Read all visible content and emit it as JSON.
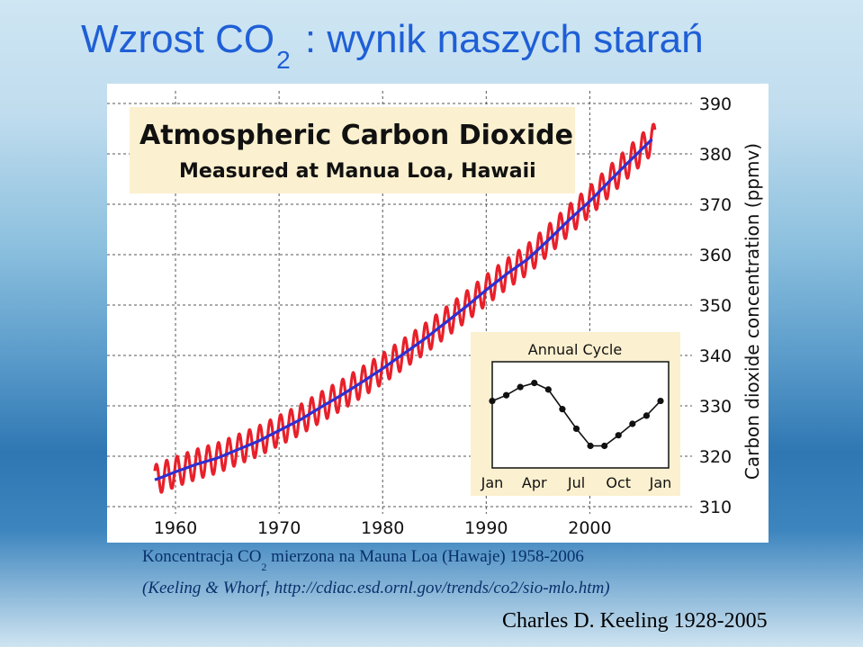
{
  "slide": {
    "title_main": "Wzrost CO",
    "title_sub": "2",
    "title_rest": " : wynik naszych starań",
    "caption_line1_a": "Koncentracja CO",
    "caption_line1_sub": "2",
    "caption_line1_b": " mierzona na Mauna Loa (Hawaje) 1958-2006",
    "caption_line2": "(Keeling & Whorf, http://cdiac.esd.ornl.gov/trends/co2/sio-mlo.htm)",
    "credit": "Charles D. Keeling 1928-2005"
  },
  "colors": {
    "title": "#1f5fd6",
    "monthly_series": "#e8202a",
    "annual_series": "#2f2fd0",
    "label_box": "#fbf0cf"
  },
  "chart_data": [
    {
      "type": "line",
      "title": "Atmospheric Carbon Dioxide",
      "subtitle": "Measured at Manua Loa, Hawaii",
      "xlabel": "",
      "ylabel": "Carbon dioxide concentration (ppmv)",
      "xlim": [
        1956,
        2009
      ],
      "ylim": [
        310,
        390
      ],
      "x_ticks": [
        "1960",
        "1970",
        "1980",
        "1990",
        "2000"
      ],
      "y_ticks": [
        "310",
        "320",
        "330",
        "340",
        "350",
        "360",
        "370",
        "380",
        "390"
      ],
      "grid": true,
      "series": [
        {
          "role": "monthly",
          "x": [
            1958,
            1960,
            1962,
            1964,
            1966,
            1968,
            1970,
            1972,
            1974,
            1976,
            1978,
            1980,
            1982,
            1984,
            1986,
            1988,
            1990,
            1992,
            1994,
            1996,
            1998,
            2000,
            2002,
            2004,
            2006
          ],
          "values": [
            315.3,
            316.9,
            318.4,
            319.6,
            321.3,
            323.0,
            325.1,
            327.2,
            329.7,
            332.1,
            334.7,
            337.4,
            340.3,
            343.2,
            346.4,
            349.6,
            353.0,
            356.2,
            359.1,
            362.9,
            366.9,
            370.6,
            374.8,
            378.9,
            382.9
          ],
          "seasonal_amplitude": 3
        },
        {
          "role": "annual",
          "x": [
            1958,
            1960,
            1962,
            1964,
            1966,
            1968,
            1970,
            1972,
            1974,
            1976,
            1978,
            1980,
            1982,
            1984,
            1986,
            1988,
            1990,
            1992,
            1994,
            1996,
            1998,
            2000,
            2002,
            2004,
            2006
          ],
          "values": [
            315.3,
            316.9,
            318.4,
            319.6,
            321.3,
            323.0,
            325.1,
            327.2,
            329.7,
            332.1,
            334.7,
            337.4,
            340.3,
            343.2,
            346.4,
            349.6,
            353.0,
            356.2,
            359.1,
            362.9,
            366.9,
            370.6,
            374.8,
            378.9,
            382.9
          ]
        }
      ]
    },
    {
      "type": "line",
      "title": "Annual Cycle",
      "categories": [
        "Jan",
        "Apr",
        "Jul",
        "Oct",
        "Jan"
      ],
      "x": [
        1,
        2,
        3,
        4,
        5,
        6,
        7,
        8,
        9,
        10,
        11,
        12,
        13
      ],
      "values": [
        1.2,
        1.9,
        2.9,
        3.4,
        2.6,
        0.2,
        -2.2,
        -4.3,
        -4.3,
        -3.0,
        -1.6,
        -0.6,
        1.2
      ],
      "ylim": [
        -7,
        6
      ],
      "grid": false
    }
  ]
}
